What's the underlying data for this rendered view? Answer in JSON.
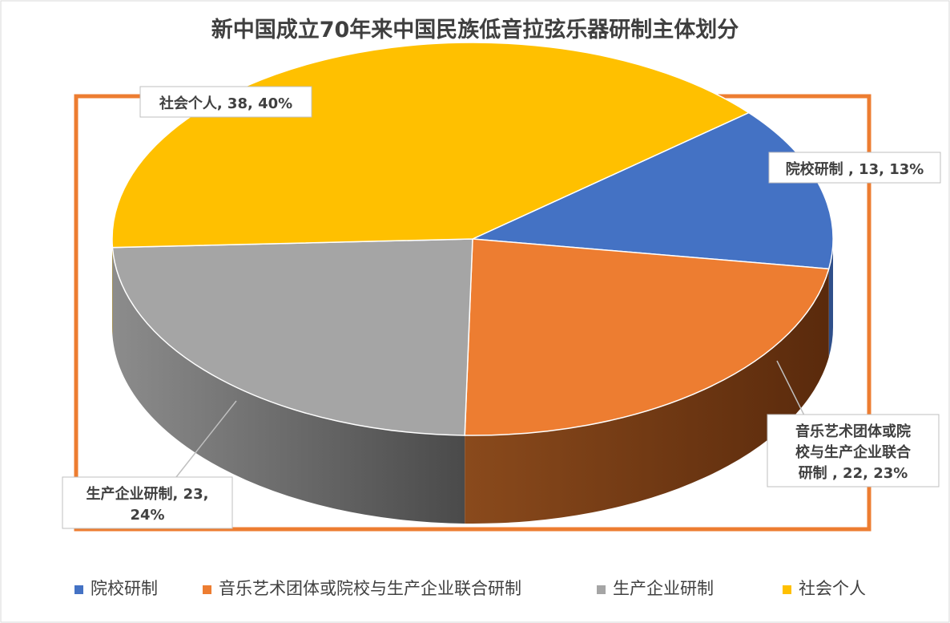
{
  "chart_data": {
    "type": "pie",
    "title": "新中国成立70年来中国民族低音拉弦乐器研制主体划分",
    "slices": [
      {
        "name": "院校研制",
        "value": 13,
        "percent": "13%",
        "label_lines": [
          "院校研制 , 13, 13%"
        ],
        "color": "#4472c4",
        "side_color": "#2f4f8a"
      },
      {
        "name": "音乐艺术团体或院校与生产企业联合研制",
        "value": 22,
        "percent": "23%",
        "label_lines": [
          "音乐艺术团体或院",
          "校与生产企业联合",
          "研制 , 22, 23%"
        ],
        "color": "#ed7d31",
        "side_color": "#8a4218"
      },
      {
        "name": "生产企业研制",
        "value": 23,
        "percent": "24%",
        "label_lines": [
          "生产企业研制, 23,",
          "24%"
        ],
        "color": "#a5a5a5",
        "side_color": "#6e6e6e"
      },
      {
        "name": "社会个人",
        "value": 38,
        "percent": "40%",
        "label_lines": [
          "社会个人, 38, 40%"
        ],
        "color": "#ffc000",
        "side_color": "#b58800"
      }
    ],
    "legend_position": "bottom",
    "highlight_border_color": "#ed7d31"
  }
}
